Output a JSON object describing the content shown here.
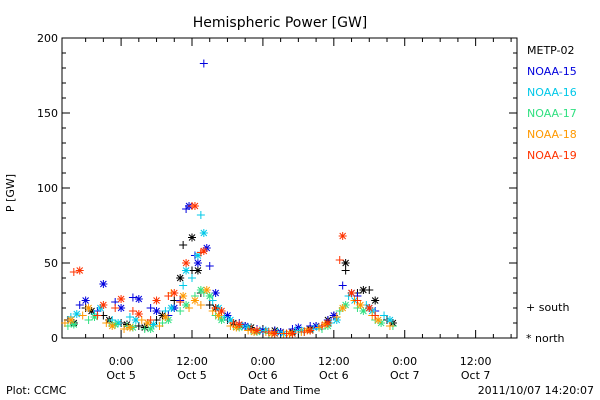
{
  "chart_data": {
    "type": "scatter",
    "title": "Hemispheric Power [GW]",
    "ylabel": "P [GW]",
    "xlabel": "Date and Time",
    "ylim": [
      0,
      200
    ],
    "xlim": [
      "2011-10-04 14:00",
      "2011-10-07 19:00"
    ],
    "y_ticks": [
      0,
      50,
      100,
      150,
      200
    ],
    "x_ticks": [
      {
        "time": "2011-10-05 00:00",
        "line1": "0:00",
        "line2": "Oct 5"
      },
      {
        "time": "2011-10-05 12:00",
        "line1": "12:00",
        "line2": "Oct 5"
      },
      {
        "time": "2011-10-06 00:00",
        "line1": "0:00",
        "line2": "Oct 6"
      },
      {
        "time": "2011-10-06 12:00",
        "line1": "12:00",
        "line2": "Oct 6"
      },
      {
        "time": "2011-10-07 00:00",
        "line1": "0:00",
        "line2": "Oct 7"
      },
      {
        "time": "2011-10-07 12:00",
        "line1": "12:00",
        "line2": "Oct 7"
      }
    ],
    "marker_legend": [
      {
        "symbol": "+",
        "label": "south"
      },
      {
        "symbol": "*",
        "label": "north"
      }
    ],
    "series": [
      {
        "name": "METP-02",
        "color": "#000000",
        "south": [
          [
            "2011-10-04 15:00",
            12
          ],
          [
            "2011-10-04 18:00",
            20
          ],
          [
            "2011-10-04 21:00",
            15
          ],
          [
            "2011-10-05 00:00",
            10
          ],
          [
            "2011-10-05 03:00",
            8
          ],
          [
            "2011-10-05 06:00",
            12
          ],
          [
            "2011-10-05 09:00",
            25
          ],
          [
            "2011-10-05 10:30",
            62
          ],
          [
            "2011-10-05 12:00",
            45
          ],
          [
            "2011-10-05 13:30",
            30
          ],
          [
            "2011-10-05 15:00",
            22
          ],
          [
            "2011-10-05 18:00",
            12
          ],
          [
            "2011-10-05 21:00",
            8
          ],
          [
            "2011-10-06 00:00",
            6
          ],
          [
            "2011-10-06 03:00",
            4
          ],
          [
            "2011-10-06 06:00",
            5
          ],
          [
            "2011-10-06 09:00",
            8
          ],
          [
            "2011-10-06 12:00",
            15
          ],
          [
            "2011-10-06 14:00",
            45
          ],
          [
            "2011-10-06 16:00",
            30
          ],
          [
            "2011-10-06 18:00",
            32
          ],
          [
            "2011-10-06 21:00",
            12
          ]
        ],
        "north": [
          [
            "2011-10-04 16:00",
            10
          ],
          [
            "2011-10-04 19:00",
            18
          ],
          [
            "2011-10-04 22:00",
            12
          ],
          [
            "2011-10-05 01:00",
            9
          ],
          [
            "2011-10-05 04:00",
            7
          ],
          [
            "2011-10-05 07:00",
            15
          ],
          [
            "2011-10-05 10:00",
            40
          ],
          [
            "2011-10-05 12:00",
            67
          ],
          [
            "2011-10-05 13:00",
            45
          ],
          [
            "2011-10-05 16:00",
            20
          ],
          [
            "2011-10-05 19:00",
            10
          ],
          [
            "2011-10-05 22:00",
            7
          ],
          [
            "2011-10-06 02:00",
            5
          ],
          [
            "2011-10-06 05:00",
            4
          ],
          [
            "2011-10-06 08:00",
            6
          ],
          [
            "2011-10-06 11:00",
            12
          ],
          [
            "2011-10-06 14:00",
            50
          ],
          [
            "2011-10-06 17:00",
            32
          ],
          [
            "2011-10-06 19:00",
            25
          ],
          [
            "2011-10-06 22:00",
            10
          ]
        ]
      },
      {
        "name": "NOAA-15",
        "color": "#0000dd",
        "south": [
          [
            "2011-10-04 17:00",
            22
          ],
          [
            "2011-10-04 20:00",
            18
          ],
          [
            "2011-10-04 23:00",
            24
          ],
          [
            "2011-10-05 02:00",
            27
          ],
          [
            "2011-10-05 05:00",
            20
          ],
          [
            "2011-10-05 08:00",
            15
          ],
          [
            "2011-10-05 10:00",
            25
          ],
          [
            "2011-10-05 11:00",
            86
          ],
          [
            "2011-10-05 12:30",
            55
          ],
          [
            "2011-10-05 14:00",
            183
          ],
          [
            "2011-10-05 15:00",
            48
          ],
          [
            "2011-10-05 17:00",
            18
          ],
          [
            "2011-10-05 20:00",
            10
          ],
          [
            "2011-10-05 23:00",
            6
          ],
          [
            "2011-10-06 02:00",
            5
          ],
          [
            "2011-10-06 05:00",
            6
          ],
          [
            "2011-10-06 08:00",
            8
          ],
          [
            "2011-10-06 11:00",
            12
          ],
          [
            "2011-10-06 13:30",
            35
          ],
          [
            "2011-10-06 16:00",
            28
          ],
          [
            "2011-10-06 19:00",
            18
          ]
        ],
        "north": [
          [
            "2011-10-04 18:00",
            25
          ],
          [
            "2011-10-04 21:00",
            36
          ],
          [
            "2011-10-05 00:00",
            20
          ],
          [
            "2011-10-05 03:00",
            26
          ],
          [
            "2011-10-05 06:00",
            18
          ],
          [
            "2011-10-05 09:00",
            20
          ],
          [
            "2011-10-05 11:30",
            88
          ],
          [
            "2011-10-05 13:00",
            50
          ],
          [
            "2011-10-05 14:30",
            60
          ],
          [
            "2011-10-05 16:00",
            30
          ],
          [
            "2011-10-05 18:00",
            15
          ],
          [
            "2011-10-05 21:00",
            8
          ],
          [
            "2011-10-06 00:00",
            5
          ],
          [
            "2011-10-06 03:00",
            4
          ],
          [
            "2011-10-06 06:00",
            7
          ],
          [
            "2011-10-06 09:00",
            8
          ],
          [
            "2011-10-06 12:00",
            15
          ],
          [
            "2011-10-06 15:00",
            30
          ],
          [
            "2011-10-06 18:00",
            20
          ]
        ]
      },
      {
        "name": "NOAA-16",
        "color": "#00c8e8",
        "south": [
          [
            "2011-10-04 15:30",
            14
          ],
          [
            "2011-10-04 19:30",
            16
          ],
          [
            "2011-10-04 22:30",
            12
          ],
          [
            "2011-10-05 01:30",
            14
          ],
          [
            "2011-10-05 04:30",
            10
          ],
          [
            "2011-10-05 07:30",
            18
          ],
          [
            "2011-10-05 10:30",
            35
          ],
          [
            "2011-10-05 12:00",
            40
          ],
          [
            "2011-10-05 13:30",
            82
          ],
          [
            "2011-10-05 15:30",
            25
          ],
          [
            "2011-10-05 17:30",
            14
          ],
          [
            "2011-10-05 20:30",
            8
          ],
          [
            "2011-10-05 23:30",
            5
          ],
          [
            "2011-10-06 02:30",
            4
          ],
          [
            "2011-10-06 05:30",
            5
          ],
          [
            "2011-10-06 08:30",
            6
          ],
          [
            "2011-10-06 11:30",
            10
          ],
          [
            "2011-10-06 14:30",
            28
          ],
          [
            "2011-10-06 17:30",
            22
          ],
          [
            "2011-10-06 20:30",
            15
          ]
        ],
        "north": [
          [
            "2011-10-04 16:30",
            16
          ],
          [
            "2011-10-04 20:30",
            20
          ],
          [
            "2011-10-04 23:30",
            10
          ],
          [
            "2011-10-05 02:30",
            12
          ],
          [
            "2011-10-05 05:30",
            9
          ],
          [
            "2011-10-05 08:30",
            20
          ],
          [
            "2011-10-05 11:00",
            45
          ],
          [
            "2011-10-05 13:00",
            55
          ],
          [
            "2011-10-05 14:00",
            70
          ],
          [
            "2011-10-05 16:30",
            20
          ],
          [
            "2011-10-05 18:30",
            12
          ],
          [
            "2011-10-05 21:30",
            7
          ],
          [
            "2011-10-06 00:30",
            5
          ],
          [
            "2011-10-06 03:30",
            3
          ],
          [
            "2011-10-06 06:30",
            5
          ],
          [
            "2011-10-06 09:30",
            7
          ],
          [
            "2011-10-06 12:30",
            12
          ],
          [
            "2011-10-06 15:30",
            25
          ],
          [
            "2011-10-06 18:30",
            18
          ],
          [
            "2011-10-06 21:30",
            12
          ]
        ]
      },
      {
        "name": "NOAA-17",
        "color": "#30e080",
        "south": [
          [
            "2011-10-04 15:00",
            8
          ],
          [
            "2011-10-04 18:30",
            12
          ],
          [
            "2011-10-04 22:00",
            10
          ],
          [
            "2011-10-05 01:00",
            8
          ],
          [
            "2011-10-05 04:00",
            6
          ],
          [
            "2011-10-05 07:00",
            10
          ],
          [
            "2011-10-05 10:00",
            18
          ],
          [
            "2011-10-05 12:30",
            28
          ],
          [
            "2011-10-05 14:00",
            30
          ],
          [
            "2011-10-05 16:00",
            15
          ],
          [
            "2011-10-05 19:00",
            8
          ],
          [
            "2011-10-05 22:00",
            5
          ],
          [
            "2011-10-06 01:00",
            3
          ],
          [
            "2011-10-06 04:00",
            3
          ],
          [
            "2011-10-06 07:00",
            4
          ],
          [
            "2011-10-06 10:00",
            6
          ],
          [
            "2011-10-06 13:00",
            18
          ],
          [
            "2011-10-06 16:00",
            20
          ],
          [
            "2011-10-06 19:00",
            12
          ],
          [
            "2011-10-06 22:00",
            8
          ]
        ],
        "north": [
          [
            "2011-10-04 16:00",
            9
          ],
          [
            "2011-10-04 19:30",
            14
          ],
          [
            "2011-10-04 23:00",
            9
          ],
          [
            "2011-10-05 02:00",
            7
          ],
          [
            "2011-10-05 05:00",
            6
          ],
          [
            "2011-10-05 08:00",
            12
          ],
          [
            "2011-10-05 11:00",
            22
          ],
          [
            "2011-10-05 13:30",
            32
          ],
          [
            "2011-10-05 15:00",
            28
          ],
          [
            "2011-10-05 17:00",
            12
          ],
          [
            "2011-10-05 20:00",
            7
          ],
          [
            "2011-10-05 23:00",
            4
          ],
          [
            "2011-10-06 02:00",
            3
          ],
          [
            "2011-10-06 05:00",
            3
          ],
          [
            "2011-10-06 08:00",
            5
          ],
          [
            "2011-10-06 11:00",
            8
          ],
          [
            "2011-10-06 14:00",
            22
          ],
          [
            "2011-10-06 17:00",
            18
          ],
          [
            "2011-10-06 20:00",
            10
          ]
        ]
      },
      {
        "name": "NOAA-18",
        "color": "#ff9900",
        "south": [
          [
            "2011-10-04 14:30",
            10
          ],
          [
            "2011-10-04 17:30",
            15
          ],
          [
            "2011-10-04 21:30",
            10
          ],
          [
            "2011-10-05 00:30",
            6
          ],
          [
            "2011-10-05 03:30",
            12
          ],
          [
            "2011-10-05 06:30",
            8
          ],
          [
            "2011-10-05 08:30",
            30
          ],
          [
            "2011-10-05 11:30",
            20
          ],
          [
            "2011-10-05 13:30",
            22
          ],
          [
            "2011-10-05 15:30",
            18
          ],
          [
            "2011-10-05 18:30",
            8
          ],
          [
            "2011-10-05 21:30",
            5
          ],
          [
            "2011-10-06 00:30",
            4
          ],
          [
            "2011-10-06 03:30",
            3
          ],
          [
            "2011-10-06 06:30",
            4
          ],
          [
            "2011-10-06 09:30",
            7
          ],
          [
            "2011-10-06 12:30",
            14
          ],
          [
            "2011-10-06 15:30",
            25
          ],
          [
            "2011-10-06 18:30",
            15
          ],
          [
            "2011-10-06 21:30",
            8
          ]
        ],
        "north": [
          [
            "2011-10-04 15:30",
            12
          ],
          [
            "2011-10-04 18:30",
            20
          ],
          [
            "2011-10-04 22:30",
            8
          ],
          [
            "2011-10-05 01:30",
            7
          ],
          [
            "2011-10-05 04:30",
            10
          ],
          [
            "2011-10-05 07:30",
            14
          ],
          [
            "2011-10-05 10:30",
            28
          ],
          [
            "2011-10-05 12:30",
            25
          ],
          [
            "2011-10-05 14:30",
            32
          ],
          [
            "2011-10-05 16:30",
            15
          ],
          [
            "2011-10-05 19:30",
            7
          ],
          [
            "2011-10-05 22:30",
            4
          ],
          [
            "2011-10-06 01:30",
            3
          ],
          [
            "2011-10-06 04:30",
            3
          ],
          [
            "2011-10-06 07:30",
            5
          ],
          [
            "2011-10-06 10:30",
            9
          ],
          [
            "2011-10-06 13:30",
            20
          ],
          [
            "2011-10-06 16:30",
            22
          ],
          [
            "2011-10-06 19:30",
            12
          ]
        ]
      },
      {
        "name": "NOAA-19",
        "color": "#ff3300",
        "south": [
          [
            "2011-10-04 16:00",
            44
          ],
          [
            "2011-10-04 20:00",
            15
          ],
          [
            "2011-10-04 23:00",
            20
          ],
          [
            "2011-10-05 02:00",
            18
          ],
          [
            "2011-10-05 05:00",
            12
          ],
          [
            "2011-10-05 08:00",
            28
          ],
          [
            "2011-10-05 10:00",
            24
          ],
          [
            "2011-10-05 12:00",
            88
          ],
          [
            "2011-10-05 13:30",
            57
          ],
          [
            "2011-10-05 16:00",
            20
          ],
          [
            "2011-10-05 19:00",
            10
          ],
          [
            "2011-10-05 22:00",
            6
          ],
          [
            "2011-10-06 01:00",
            4
          ],
          [
            "2011-10-06 04:00",
            3
          ],
          [
            "2011-10-06 07:00",
            4
          ],
          [
            "2011-10-06 10:00",
            8
          ],
          [
            "2011-10-06 13:00",
            52
          ],
          [
            "2011-10-06 16:00",
            25
          ],
          [
            "2011-10-06 19:00",
            15
          ]
        ],
        "north": [
          [
            "2011-10-04 17:00",
            45
          ],
          [
            "2011-10-04 21:00",
            22
          ],
          [
            "2011-10-05 00:00",
            26
          ],
          [
            "2011-10-05 03:00",
            16
          ],
          [
            "2011-10-05 06:00",
            25
          ],
          [
            "2011-10-05 09:00",
            30
          ],
          [
            "2011-10-05 11:00",
            50
          ],
          [
            "2011-10-05 12:30",
            88
          ],
          [
            "2011-10-05 14:00",
            58
          ],
          [
            "2011-10-05 17:00",
            18
          ],
          [
            "2011-10-05 20:00",
            9
          ],
          [
            "2011-10-05 23:00",
            5
          ],
          [
            "2011-10-06 02:00",
            3
          ],
          [
            "2011-10-06 05:00",
            3
          ],
          [
            "2011-10-06 08:00",
            5
          ],
          [
            "2011-10-06 11:00",
            10
          ],
          [
            "2011-10-06 13:30",
            68
          ],
          [
            "2011-10-06 15:00",
            30
          ],
          [
            "2011-10-06 18:00",
            20
          ]
        ]
      }
    ]
  },
  "footer": {
    "left": "Plot: CCMC",
    "right": "2011/10/07 14:20:07"
  }
}
